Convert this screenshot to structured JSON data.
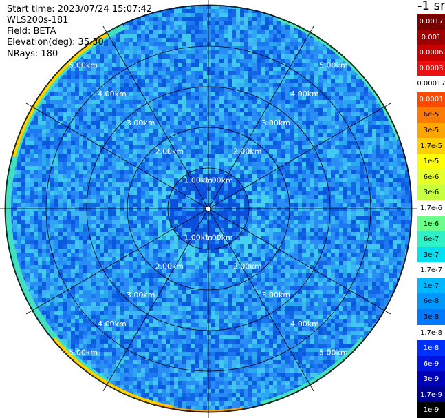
{
  "header": {
    "start_time": "Start time: 2023/07/24 15:07:42",
    "instrument": "WLS200s-181",
    "field": "Field: BETA",
    "elevation": "Elevation(deg): 35.30",
    "nrays": "NRays: 180"
  },
  "range_rings": {
    "labels": [
      "1.00km",
      "2.00km",
      "3.00km",
      "4.00km",
      "5.00km"
    ]
  },
  "colorbar": {
    "unit_label": "-1 sr",
    "levels": [
      {
        "label": "0.0017",
        "color": "#7a0000",
        "text": "#ffffff"
      },
      {
        "label": "0.001",
        "color": "#a00000",
        "text": "#ffffff"
      },
      {
        "label": "0.0006",
        "color": "#c80000",
        "text": "#ffffff"
      },
      {
        "label": "0.0003",
        "color": "#ee1010",
        "text": "#ffffff"
      },
      {
        "label": "0.00017",
        "color": "#ffffff",
        "text": "#000000"
      },
      {
        "label": "0.0001",
        "color": "#ff4a00",
        "text": "#ffffff"
      },
      {
        "label": "6e-5",
        "color": "#ff7a00",
        "text": "#000000"
      },
      {
        "label": "3e-5",
        "color": "#ffa500",
        "text": "#000000"
      },
      {
        "label": "1.7e-5",
        "color": "#ffd000",
        "text": "#000000"
      },
      {
        "label": "1e-5",
        "color": "#ffff00",
        "text": "#000000"
      },
      {
        "label": "6e-6",
        "color": "#e6ff2a",
        "text": "#000000"
      },
      {
        "label": "3e-6",
        "color": "#c8ff40",
        "text": "#000000"
      },
      {
        "label": "1.7e-6",
        "color": "#ffffff",
        "text": "#000000"
      },
      {
        "label": "1e-6",
        "color": "#6aff8a",
        "text": "#000000"
      },
      {
        "label": "6e-7",
        "color": "#30f0c8",
        "text": "#000000"
      },
      {
        "label": "3e-7",
        "color": "#00e0f0",
        "text": "#000000"
      },
      {
        "label": "1.7e-7",
        "color": "#ffffff",
        "text": "#000000"
      },
      {
        "label": "1e-7",
        "color": "#00b8ff",
        "text": "#000000"
      },
      {
        "label": "6e-8",
        "color": "#0098ff",
        "text": "#000000"
      },
      {
        "label": "3e-8",
        "color": "#0078ff",
        "text": "#000000"
      },
      {
        "label": "1.7e-8",
        "color": "#ffffff",
        "text": "#000000"
      },
      {
        "label": "1e-8",
        "color": "#0030ff",
        "text": "#ffffff"
      },
      {
        "label": "6e-9",
        "color": "#0014e0",
        "text": "#ffffff"
      },
      {
        "label": "3e-9",
        "color": "#0000b8",
        "text": "#ffffff"
      },
      {
        "label": "1.7e-9",
        "color": "#000090",
        "text": "#ffffff"
      },
      {
        "label": "1e-9",
        "color": "#000000",
        "text": "#ffffff"
      }
    ]
  }
}
